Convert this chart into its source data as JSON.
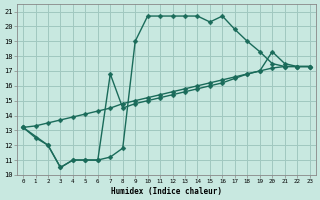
{
  "xlabel": "Humidex (Indice chaleur)",
  "bg_color": "#c8e8e0",
  "grid_color": "#a0c8c0",
  "line_color": "#1a6b5a",
  "markersize": 2.5,
  "linewidth": 1.0,
  "xlim": [
    -0.5,
    23.5
  ],
  "ylim": [
    10,
    21.5
  ],
  "xticks": [
    0,
    1,
    2,
    3,
    4,
    5,
    6,
    7,
    8,
    9,
    10,
    11,
    12,
    13,
    14,
    15,
    16,
    17,
    18,
    19,
    20,
    21,
    22,
    23
  ],
  "yticks": [
    10,
    11,
    12,
    13,
    14,
    15,
    16,
    17,
    18,
    19,
    20,
    21
  ],
  "line1_x": [
    0,
    1,
    2,
    3,
    4,
    5,
    6,
    7,
    8,
    9,
    10,
    11,
    12,
    13,
    14,
    15,
    16,
    17,
    18,
    19,
    20,
    21,
    22,
    23
  ],
  "line1_y": [
    13.2,
    12.5,
    12.0,
    10.5,
    11.0,
    11.0,
    11.0,
    11.2,
    11.8,
    19.0,
    20.7,
    20.7,
    20.7,
    20.7,
    20.7,
    20.3,
    20.7,
    19.8,
    19.0,
    18.3,
    17.5,
    17.3,
    17.3,
    17.3
  ],
  "line2_x": [
    0,
    2,
    3,
    4,
    5,
    6,
    7,
    8,
    9,
    10,
    11,
    12,
    13,
    14,
    15,
    16,
    17,
    18,
    19,
    20,
    21,
    22,
    23
  ],
  "line2_y": [
    13.2,
    12.0,
    10.5,
    11.0,
    11.0,
    11.0,
    16.8,
    14.5,
    14.8,
    15.0,
    15.2,
    15.4,
    15.6,
    15.8,
    16.0,
    16.2,
    16.5,
    16.8,
    17.0,
    18.3,
    17.5,
    17.3,
    17.3
  ],
  "line3_x": [
    0,
    1,
    2,
    3,
    4,
    5,
    6,
    7,
    8,
    9,
    10,
    11,
    12,
    13,
    14,
    15,
    16,
    17,
    18,
    19,
    20,
    21,
    22,
    23
  ],
  "line3_y": [
    13.2,
    13.3,
    13.5,
    13.7,
    13.9,
    14.1,
    14.3,
    14.5,
    14.8,
    15.0,
    15.2,
    15.4,
    15.6,
    15.8,
    16.0,
    16.2,
    16.4,
    16.6,
    16.8,
    17.0,
    17.2,
    17.3,
    17.3,
    17.3
  ]
}
